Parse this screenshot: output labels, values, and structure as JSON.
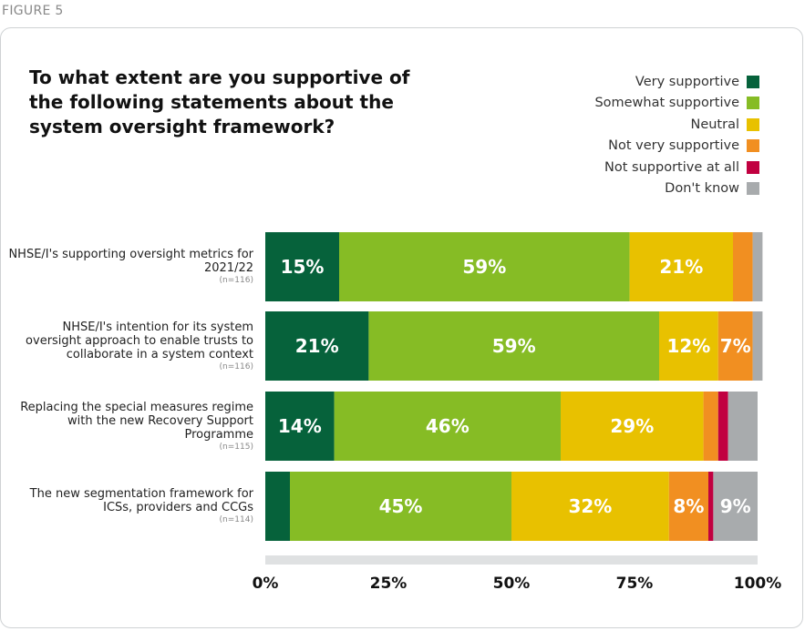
{
  "figure_label": "FIGURE 5",
  "chart_data": {
    "type": "bar",
    "stacked": true,
    "orientation": "horizontal",
    "title": "To what extent are you supportive of the following statements about the system oversight framework?",
    "legend_position": "top-right",
    "series_names": [
      "Very supportive",
      "Somewhat supportive",
      "Neutral",
      "Not very supportive",
      "Not supportive at all",
      "Don't know"
    ],
    "colors": [
      "#06623b",
      "#86bc25",
      "#e8c100",
      "#f18f21",
      "#c10040",
      "#a8abad"
    ],
    "categories": [
      {
        "label": "NHSE/I's supporting oversight metrics for 2021/22",
        "n": "(n=116)",
        "values": [
          15,
          59,
          21,
          4,
          0,
          2
        ],
        "labels": [
          "15%",
          "59%",
          "21%",
          "",
          "",
          ""
        ]
      },
      {
        "label": "NHSE/I's intention for its system oversight approach to enable trusts to collaborate in a system context",
        "n": "(n=116)",
        "values": [
          21,
          59,
          12,
          7,
          0,
          2
        ],
        "labels": [
          "21%",
          "59%",
          "12%",
          "7%",
          "",
          ""
        ]
      },
      {
        "label": "Replacing the special measures regime with the new Recovery Support Programme",
        "n": "(n=115)",
        "values": [
          14,
          46,
          29,
          3,
          2,
          6
        ],
        "labels": [
          "14%",
          "46%",
          "29%",
          "",
          "",
          ""
        ]
      },
      {
        "label": "The new segmentation framework for ICSs, providers and CCGs",
        "n": "(n=114)",
        "values": [
          5,
          45,
          32,
          8,
          1,
          9
        ],
        "labels": [
          "",
          "45%",
          "32%",
          "8%",
          "",
          "9%"
        ]
      }
    ],
    "xlim": [
      0,
      100
    ],
    "xticks": [
      "0%",
      "25%",
      "50%",
      "75%",
      "100%"
    ]
  }
}
